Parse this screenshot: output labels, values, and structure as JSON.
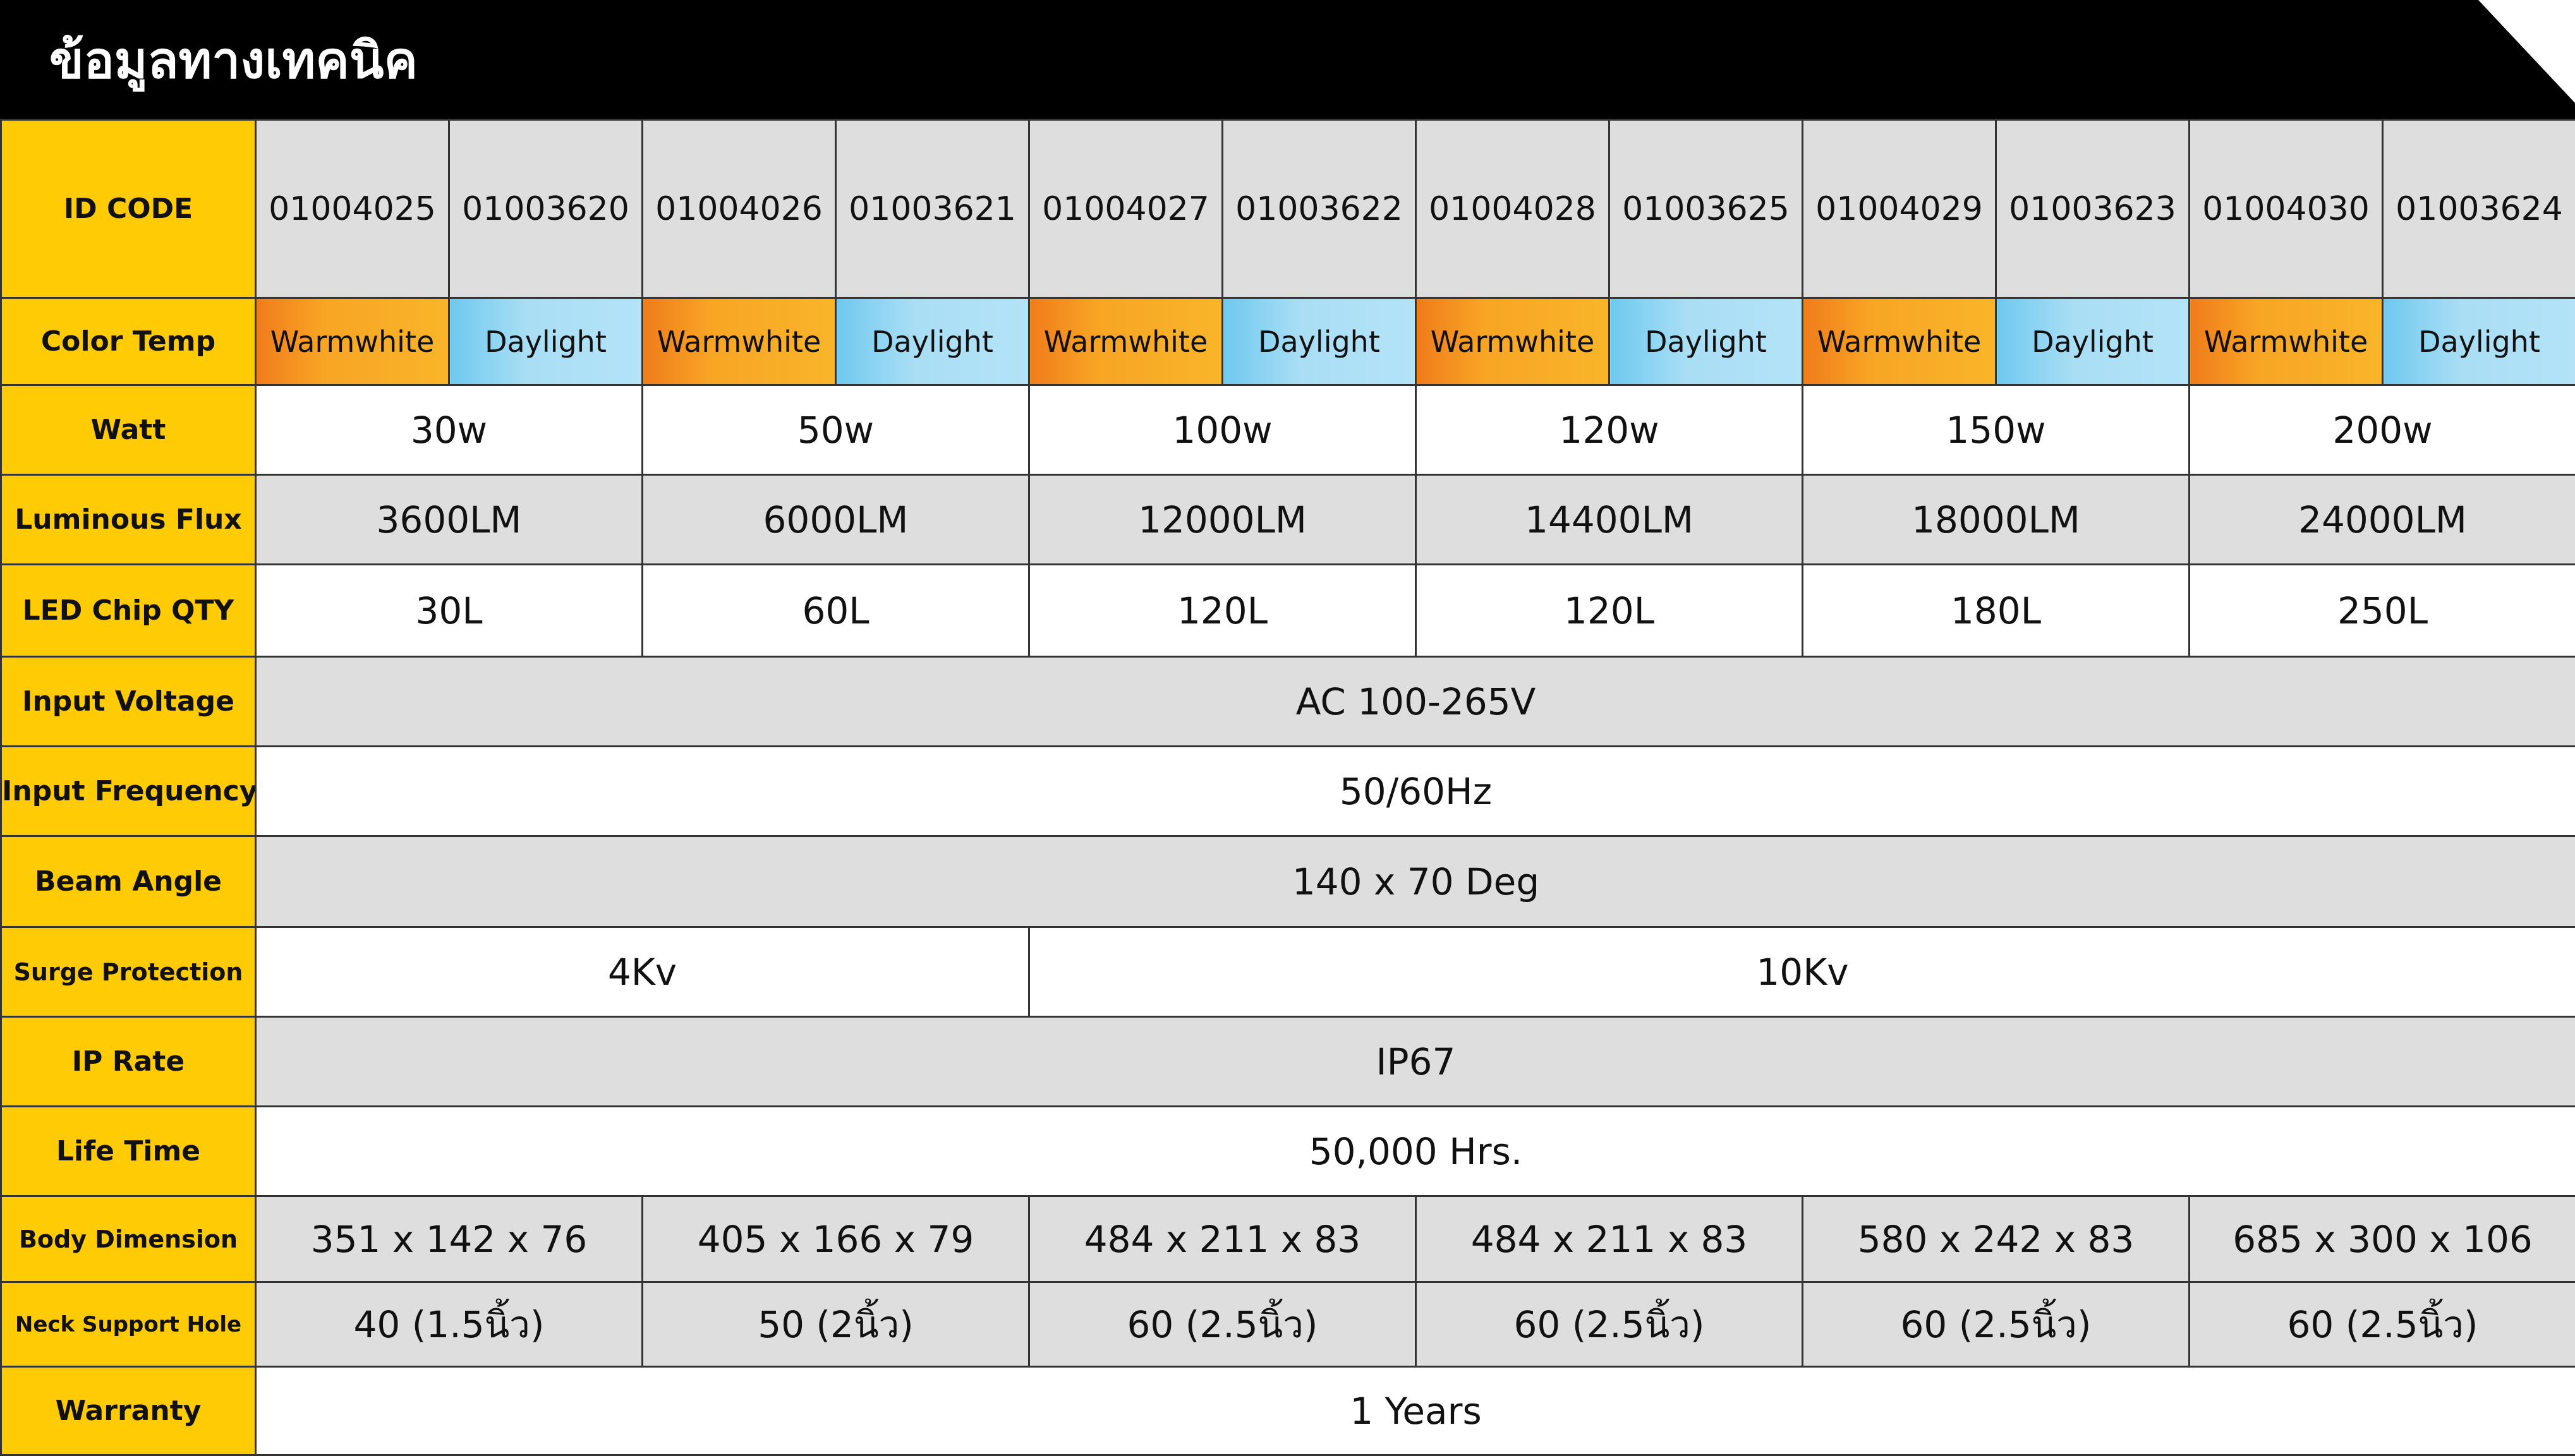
{
  "header": {
    "title": "ข้อมูลทางเทคนิค"
  },
  "colors": {
    "header_bg": "#000000",
    "label_bg": "#ffcb05",
    "warm": "#f8a524",
    "day": "#a9def5",
    "grey_row": "#dedede"
  },
  "rows": {
    "id_code": {
      "label": "ID CODE",
      "values": [
        "01004025",
        "01003620",
        "01004026",
        "01003621",
        "01004027",
        "01003622",
        "01004028",
        "01003625",
        "01004029",
        "01003623",
        "01004030",
        "01003624"
      ]
    },
    "color_temp": {
      "label": "Color Temp",
      "values": [
        "Warmwhite",
        "Daylight",
        "Warmwhite",
        "Daylight",
        "Warmwhite",
        "Daylight",
        "Warmwhite",
        "Daylight",
        "Warmwhite",
        "Daylight",
        "Warmwhite",
        "Daylight"
      ]
    },
    "watt": {
      "label": "Watt",
      "values": [
        "30w",
        "50w",
        "100w",
        "120w",
        "150w",
        "200w"
      ]
    },
    "luminous_flux": {
      "label": "Luminous Flux",
      "values": [
        "3600LM",
        "6000LM",
        "12000LM",
        "14400LM",
        "18000LM",
        "24000LM"
      ]
    },
    "led_chip_qty": {
      "label": "LED Chip QTY",
      "values": [
        "30L",
        "60L",
        "120L",
        "120L",
        "180L",
        "250L"
      ]
    },
    "input_voltage": {
      "label": "Input Voltage",
      "value": "AC 100-265V"
    },
    "input_frequency": {
      "label": "Input Frequency",
      "value": "50/60Hz"
    },
    "beam_angle": {
      "label": "Beam Angle",
      "value": "140 x 70 Deg"
    },
    "surge_protection": {
      "label": "Surge Protection",
      "values": [
        "4Kv",
        "10Kv"
      ]
    },
    "ip_rate": {
      "label": "IP Rate",
      "value": "IP67"
    },
    "life_time": {
      "label": "Life Time",
      "value": "50,000 Hrs."
    },
    "body_dimension": {
      "label": "Body Dimension",
      "values": [
        "351 x 142 x 76",
        "405 x 166 x 79",
        "484 x 211 x 83",
        "484 x 211 x 83",
        "580 x 242 x 83",
        "685 x 300 x 106"
      ]
    },
    "neck_support_hole": {
      "label": "Neck Support Hole",
      "values": [
        "40 (1.5นิ้ว)",
        "50 (2นิ้ว)",
        "60 (2.5นิ้ว)",
        "60 (2.5นิ้ว)",
        "60 (2.5นิ้ว)",
        "60 (2.5นิ้ว)"
      ]
    },
    "warranty": {
      "label": "Warranty",
      "value": "1 Years"
    }
  }
}
